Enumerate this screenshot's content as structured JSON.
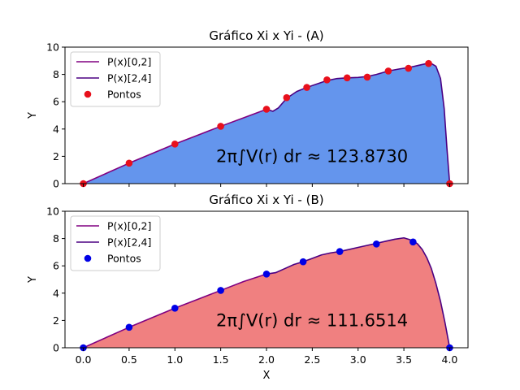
{
  "chart_data": [
    {
      "type": "area",
      "title": "Gráfico Xi x Yi - (A)",
      "xlabel": "",
      "ylabel": "Y",
      "xlim": [
        -0.2,
        4.2
      ],
      "ylim": [
        0,
        10
      ],
      "xticks": [
        0.0,
        0.5,
        1.0,
        1.5,
        2.0,
        2.5,
        3.0,
        3.5,
        4.0
      ],
      "xtick_labels": [],
      "yticks": [
        0,
        2,
        4,
        6,
        8,
        10
      ],
      "ytick_labels": [
        "0",
        "2",
        "4",
        "6",
        "8",
        "10"
      ],
      "grid": false,
      "legend_position": "top-left",
      "fill_color": "#6495ed",
      "annotation_prefix": "2π∫V(r) dr ≈ ",
      "annotation_value": "123.8730",
      "series": [
        {
          "name": "P(x)[0,2]",
          "kind": "line",
          "color": "#800080",
          "x": [
            0.0,
            0.25,
            0.5,
            0.75,
            1.0,
            1.25,
            1.5,
            1.75,
            2.0
          ],
          "y": [
            0.0,
            0.75,
            1.5,
            2.2,
            2.9,
            3.55,
            4.2,
            4.82,
            5.45
          ]
        },
        {
          "name": "P(x)[2,4]",
          "kind": "line",
          "color": "#4b0082",
          "x": [
            2.0,
            2.07,
            2.13,
            2.22,
            2.33,
            2.44,
            2.55,
            2.66,
            2.77,
            2.88,
            3.0,
            3.1,
            3.2,
            3.33,
            3.45,
            3.55,
            3.65,
            3.75,
            3.8,
            3.85,
            3.9,
            3.94,
            3.97,
            4.0
          ],
          "y": [
            5.45,
            5.3,
            5.55,
            6.25,
            6.75,
            7.05,
            7.3,
            7.55,
            7.7,
            7.75,
            7.78,
            7.85,
            8.0,
            8.25,
            8.4,
            8.5,
            8.65,
            8.8,
            8.8,
            8.6,
            7.7,
            5.5,
            2.6,
            0.0
          ]
        },
        {
          "name": "Pontos",
          "kind": "scatter",
          "color": "#e8101c",
          "x": [
            0.0,
            0.5,
            1.0,
            1.5,
            2.0,
            2.22,
            2.44,
            2.66,
            2.88,
            3.1,
            3.33,
            3.55,
            3.77,
            4.0
          ],
          "y": [
            0.0,
            1.5,
            2.9,
            4.2,
            5.45,
            6.3,
            7.05,
            7.6,
            7.75,
            7.8,
            8.25,
            8.45,
            8.8,
            0.0
          ]
        }
      ]
    },
    {
      "type": "area",
      "title": "Gráfico Xi x Yi - (B)",
      "xlabel": "X",
      "ylabel": "Y",
      "xlim": [
        -0.2,
        4.2
      ],
      "ylim": [
        0,
        10
      ],
      "xticks": [
        0.0,
        0.5,
        1.0,
        1.5,
        2.0,
        2.5,
        3.0,
        3.5,
        4.0
      ],
      "xtick_labels": [
        "0.0",
        "0.5",
        "1.0",
        "1.5",
        "2.0",
        "2.5",
        "3.0",
        "3.5",
        "4.0"
      ],
      "yticks": [
        0,
        2,
        4,
        6,
        8,
        10
      ],
      "ytick_labels": [
        "0",
        "2",
        "4",
        "6",
        "8",
        "10"
      ],
      "grid": false,
      "legend_position": "top-left",
      "fill_color": "#f08080",
      "annotation_prefix": "2π∫V(r) dr ≈ ",
      "annotation_value": "111.6514",
      "series": [
        {
          "name": "P(x)[0,2]",
          "kind": "line",
          "color": "#800080",
          "x": [
            0.0,
            0.25,
            0.5,
            0.75,
            1.0,
            1.25,
            1.5,
            1.75,
            2.0
          ],
          "y": [
            0.0,
            0.75,
            1.5,
            2.2,
            2.9,
            3.55,
            4.2,
            4.85,
            5.4
          ]
        },
        {
          "name": "P(x)[2,4]",
          "kind": "line",
          "color": "#4b0082",
          "x": [
            2.0,
            2.1,
            2.2,
            2.3,
            2.4,
            2.5,
            2.6,
            2.7,
            2.8,
            2.9,
            3.0,
            3.1,
            3.2,
            3.3,
            3.4,
            3.5,
            3.6,
            3.65,
            3.7,
            3.75,
            3.8,
            3.85,
            3.9,
            3.95,
            4.0
          ],
          "y": [
            5.4,
            5.5,
            5.8,
            6.1,
            6.3,
            6.55,
            6.8,
            6.95,
            7.05,
            7.2,
            7.35,
            7.5,
            7.65,
            7.8,
            7.95,
            8.05,
            7.85,
            7.6,
            7.2,
            6.6,
            5.8,
            4.7,
            3.4,
            1.8,
            0.0
          ]
        },
        {
          "name": "Pontos",
          "kind": "scatter",
          "color": "#0000e6",
          "x": [
            0.0,
            0.5,
            1.0,
            1.5,
            2.0,
            2.4,
            2.8,
            3.2,
            3.6,
            4.0
          ],
          "y": [
            0.0,
            1.5,
            2.9,
            4.2,
            5.4,
            6.3,
            7.05,
            7.6,
            7.75,
            0.0
          ]
        }
      ]
    }
  ]
}
